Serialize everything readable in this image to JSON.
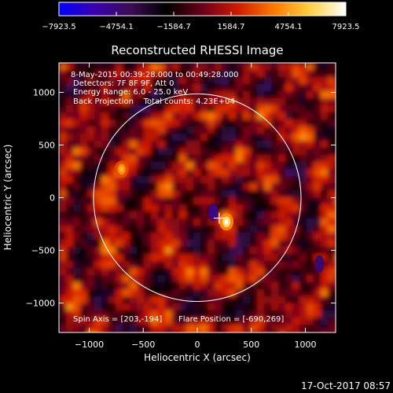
{
  "colorbar": {
    "tick_labels": [
      "−7923.5",
      "−4754.1",
      "−1584.7",
      "1584.7",
      "4754.1",
      "7923.5"
    ],
    "tick_values": [
      -7923.5,
      -4754.1,
      -1584.7,
      1584.7,
      4754.1,
      7923.5
    ],
    "range": [
      -7923.5,
      7923.5
    ],
    "colors": [
      "#0000ff",
      "#3a00b0",
      "#3b0d52",
      "#000000",
      "#6b001a",
      "#d11a00",
      "#ff7a00",
      "#ffd040",
      "#ffffff"
    ]
  },
  "chart_data": {
    "type": "heatmap",
    "title": "Reconstructed RHESSI Image",
    "xlabel": "Heliocentric X (arcsec)",
    "ylabel": "Heliocentric Y (arcsec)",
    "xlim": [
      -1280,
      1280
    ],
    "ylim": [
      -1280,
      1280
    ],
    "x_ticks": [
      -1000,
      -500,
      0,
      500,
      1000
    ],
    "x_tick_labels": [
      "−1000",
      "−500",
      "0",
      "500",
      "1000"
    ],
    "y_ticks": [
      1000,
      500,
      0,
      -500,
      -1000
    ],
    "y_tick_labels": [
      "1000",
      "500",
      "0",
      "−500",
      "−1000"
    ],
    "info_lines": [
      "8-May-2015 00:39:28.000 to 00:49:28.000",
      "Detectors: 7F 8F 9F, Att 0",
      "Energy Range: 6.0 - 25.0 keV",
      "Back Projection    Total counts: 4.23E+04"
    ],
    "spin_axis_label": "Spin Axis = [203,-194]",
    "flare_position_label": "Flare Position = [-690,269]",
    "spin_axis": [
      203,
      -194
    ],
    "solar_limb_radius": 960,
    "bright_sources": [
      {
        "x": 270,
        "y": -230,
        "level": 7900
      },
      {
        "x": -700,
        "y": 270,
        "level": 5500
      }
    ],
    "dark_sources": [
      {
        "x": 150,
        "y": -140,
        "level": -5000
      },
      {
        "x": 1130,
        "y": -630,
        "level": -4500
      }
    ]
  },
  "timestamp": "17-Oct-2017 08:57"
}
